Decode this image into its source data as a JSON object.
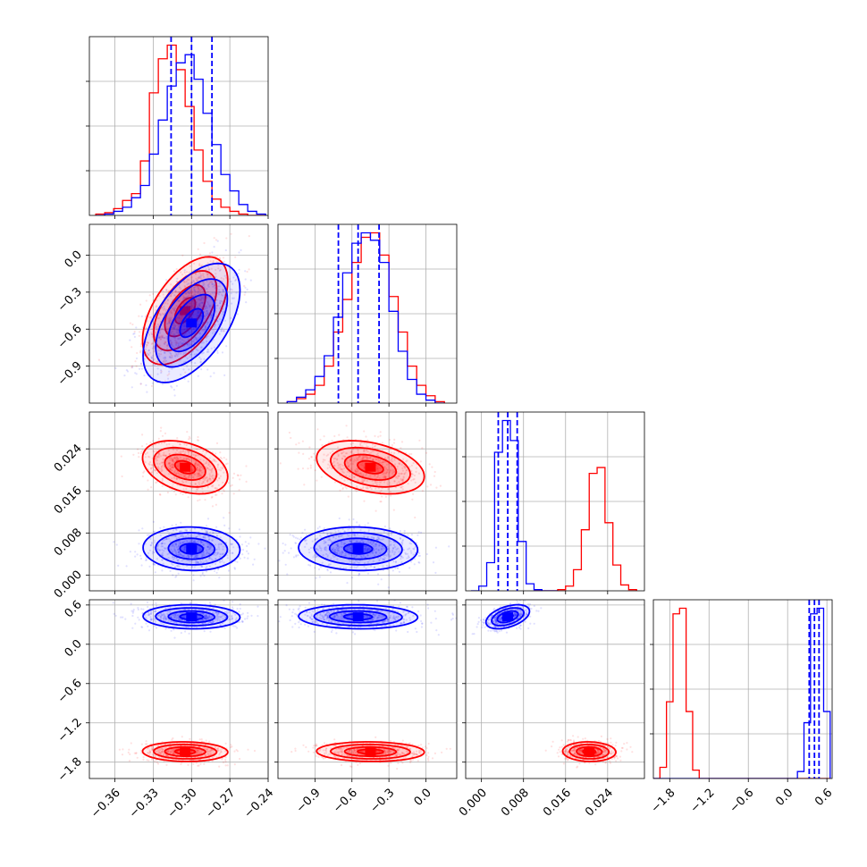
{
  "colors": {
    "red": "#ff0000",
    "blue": "#0000ff",
    "grid": "#b0b0b0",
    "frame": "#000000"
  },
  "chart_data": {
    "type": "corner",
    "grid": true,
    "parameters": [
      {
        "range": [
          -0.38,
          -0.24
        ],
        "ticks": [
          -0.36,
          -0.33,
          -0.3,
          -0.27,
          -0.24
        ],
        "tick_labels": [
          "−0.36",
          "−0.33",
          "−0.30",
          "−0.27",
          "−0.24"
        ]
      },
      {
        "range": [
          -1.2,
          0.25
        ],
        "ticks": [
          -0.9,
          -0.6,
          -0.3,
          0.0
        ],
        "tick_labels": [
          "−0.9",
          "−0.6",
          "−0.3",
          "0.0"
        ]
      },
      {
        "range": [
          -0.003,
          0.031
        ],
        "ticks": [
          0.0,
          0.008,
          0.016,
          0.024
        ],
        "tick_labels": [
          "0.000",
          "0.008",
          "0.016",
          "0.024"
        ]
      },
      {
        "range": [
          -2.05,
          0.68
        ],
        "ticks": [
          -1.8,
          -1.2,
          -0.6,
          0.0,
          0.6
        ],
        "tick_labels": [
          "−1.8",
          "−1.2",
          "−0.6",
          "0.0",
          "0.6"
        ]
      }
    ],
    "series": [
      {
        "color": "#ff0000",
        "mean": [
          -0.305,
          -0.45,
          0.0205,
          -1.64
        ],
        "std": [
          0.0145,
          0.19,
          0.0022,
          0.065
        ],
        "corr": [
          [
            1,
            0.55,
            -0.35,
            -0.05
          ],
          [
            0.55,
            1,
            -0.35,
            -0.05
          ],
          [
            -0.35,
            -0.35,
            1,
            -0.05
          ],
          [
            -0.05,
            -0.05,
            -0.05,
            1
          ]
        ],
        "hist": [
          {
            "edges": [
              -0.375,
              -0.368,
              -0.361,
              -0.354,
              -0.347,
              -0.34,
              -0.333,
              -0.326,
              -0.319,
              -0.312,
              -0.305,
              -0.298,
              -0.291,
              -0.284,
              -0.277,
              -0.27,
              -0.263,
              -0.256,
              -0.249,
              -0.242
            ],
            "counts": [
              1,
              2,
              5,
              11,
              16,
              40,
              90,
              115,
              125,
              107,
              80,
              48,
              25,
              12,
              6,
              3,
              1,
              0,
              0
            ]
          },
          {
            "edges": [
              -1.125,
              -1.05,
              -0.975,
              -0.9,
              -0.825,
              -0.75,
              -0.675,
              -0.6,
              -0.525,
              -0.45,
              -0.375,
              -0.3,
              -0.225,
              -0.15,
              -0.075,
              0.0,
              0.075,
              0.15
            ],
            "counts": [
              1,
              3,
              6,
              12,
              25,
              48,
              70,
              95,
              112,
              115,
              100,
              72,
              48,
              25,
              12,
              5,
              1
            ]
          },
          {
            "edges": [
              0.01,
              0.0115,
              0.013,
              0.0145,
              0.016,
              0.0175,
              0.019,
              0.0205,
              0.022,
              0.0235,
              0.025,
              0.0265,
              0.028,
              0.0295
            ],
            "counts": [
              0,
              0,
              0,
              1,
              4,
              18,
              52,
              100,
              105,
              58,
              22,
              5,
              1
            ]
          },
          {
            "edges": [
              -2.05,
              -1.95,
              -1.85,
              -1.75,
              -1.65,
              -1.55,
              -1.45,
              -1.35,
              -1.25,
              -1.15,
              -1.05,
              -0.95,
              -0.85,
              -0.75,
              -0.65,
              -0.55,
              -0.45,
              -0.35,
              -0.25,
              -0.15,
              -0.05,
              0.05,
              0.15,
              0.25,
              0.35,
              0.45,
              0.55,
              0.65
            ],
            "counts": [
              0,
              8,
              55,
              118,
              122,
              48,
              6,
              0,
              0,
              0,
              0,
              0,
              0,
              0,
              0,
              0,
              0,
              0,
              0,
              0,
              0,
              0,
              0,
              0,
              0,
              0,
              0
            ]
          }
        ]
      },
      {
        "color": "#0000ff",
        "mean": [
          -0.3,
          -0.55,
          0.005,
          0.42
        ],
        "std": [
          0.0165,
          0.21,
          0.0018,
          0.08
        ],
        "corr": [
          [
            1,
            0.55,
            -0.05,
            -0.05
          ],
          [
            0.55,
            1,
            -0.05,
            -0.05
          ],
          [
            -0.05,
            -0.05,
            1,
            0.45
          ],
          [
            -0.05,
            -0.05,
            0.45,
            1
          ]
        ],
        "quantiles": [
          [
            -0.316,
            -0.3,
            -0.284
          ],
          [
            -0.71,
            -0.55,
            -0.38
          ],
          [
            0.0032,
            0.005,
            0.0068
          ],
          [
            0.33,
            0.41,
            0.48
          ]
        ],
        "hist": [
          {
            "edges": [
              -0.375,
              -0.368,
              -0.361,
              -0.354,
              -0.347,
              -0.34,
              -0.333,
              -0.326,
              -0.319,
              -0.312,
              -0.305,
              -0.298,
              -0.291,
              -0.284,
              -0.277,
              -0.27,
              -0.263,
              -0.256,
              -0.249,
              -0.242
            ],
            "counts": [
              0,
              1,
              3,
              6,
              13,
              22,
              45,
              70,
              95,
              112,
              118,
              100,
              75,
              52,
              30,
              18,
              8,
              3,
              1
            ]
          },
          {
            "edges": [
              -1.125,
              -1.05,
              -0.975,
              -0.9,
              -0.825,
              -0.75,
              -0.675,
              -0.6,
              -0.525,
              -0.45,
              -0.375,
              -0.3,
              -0.225,
              -0.15,
              -0.075,
              0.0,
              0.075,
              0.15
            ],
            "counts": [
              1,
              4,
              9,
              18,
              32,
              58,
              88,
              108,
              115,
              110,
              95,
              62,
              35,
              16,
              6,
              2,
              0
            ]
          },
          {
            "edges": [
              -0.002,
              -0.0005,
              0.001,
              0.0025,
              0.004,
              0.0055,
              0.007,
              0.0085,
              0.01,
              0.0115,
              0.013,
              0.0145
            ],
            "counts": [
              0,
              4,
              24,
              118,
              145,
              128,
              42,
              6,
              1,
              0,
              0
            ]
          },
          {
            "edges": [
              -2.05,
              -1.95,
              -1.85,
              -1.75,
              -1.65,
              -1.55,
              -1.45,
              -1.35,
              -1.25,
              -1.15,
              -1.05,
              -0.95,
              -0.85,
              -0.75,
              -0.65,
              -0.55,
              -0.45,
              -0.35,
              -0.25,
              -0.15,
              -0.05,
              0.05,
              0.15,
              0.25,
              0.35,
              0.45,
              0.55,
              0.65
            ],
            "counts": [
              0,
              0,
              0,
              0,
              0,
              0,
              0,
              0,
              0,
              0,
              0,
              0,
              0,
              0,
              0,
              0,
              0,
              0,
              0,
              0,
              0,
              0,
              5,
              40,
              118,
              122,
              48
            ]
          }
        ]
      }
    ]
  }
}
